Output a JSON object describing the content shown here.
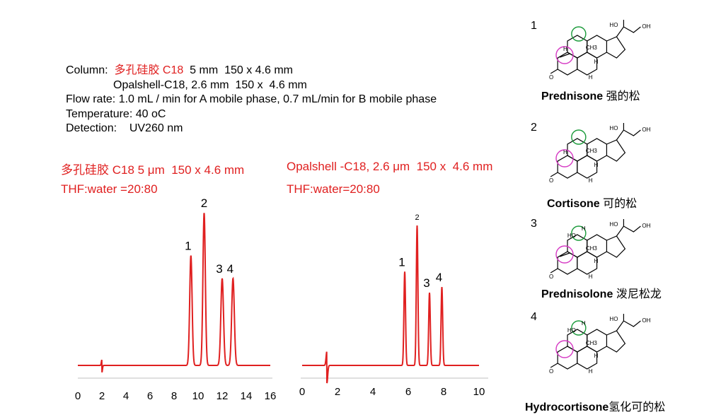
{
  "conditions": {
    "column_label": "Column:",
    "column_1_cn": "多孔硅胶 C18",
    "column_1_rest": "5 mm  150 x 4.6 mm",
    "column_2": "Opalshell-C18, 2.6 mm  150 x  4.6 mm",
    "flow_rate": "Flow rate: 1.0 mL / min for A mobile phase, 0.7 mL/min for B mobile phase",
    "temperature": "Temperature: 40 oC",
    "detection": "Detection:    UV260 nm"
  },
  "colors": {
    "trace": "#e02020",
    "highlight_green": "#1a9a3a",
    "highlight_pink": "#d63bc4"
  },
  "chart_data": [
    {
      "type": "line",
      "title": "多孔硅胶 C18 5 μm  150 x 4.6 mm",
      "subtitle": "THF:water =20:80",
      "xlim": [
        0,
        16
      ],
      "x_ticks": [
        "0",
        "2",
        "4",
        "6",
        "8",
        "10",
        "12",
        "14",
        "16"
      ],
      "y_axis": "not shown",
      "grid": false,
      "peaks": [
        {
          "label": "1",
          "time": 9.4,
          "height": 0.72,
          "width": 0.1
        },
        {
          "label": "2",
          "time": 10.5,
          "height": 1.0,
          "width": 0.1
        },
        {
          "label": "3",
          "time": 12.0,
          "height": 0.57,
          "width": 0.11
        },
        {
          "label": "4",
          "time": 12.9,
          "height": 0.57,
          "width": 0.11
        }
      ],
      "injection_disturbance_time": 2.0
    },
    {
      "type": "line",
      "title": "Opalshell -C18, 2.6 μm  150 x  4.6 mm",
      "subtitle": "THF:water=20:80",
      "xlim": [
        0,
        10
      ],
      "x_ticks": [
        "0",
        "2",
        "4",
        "6",
        "8",
        "10"
      ],
      "y_axis": "not shown",
      "grid": false,
      "peaks": [
        {
          "label": "1",
          "time": 5.8,
          "height": 0.67,
          "width": 0.045
        },
        {
          "label": "2",
          "time": 6.5,
          "height": 1.0,
          "width": 0.045
        },
        {
          "label": "3",
          "time": 7.2,
          "height": 0.52,
          "width": 0.045
        },
        {
          "label": "4",
          "time": 7.9,
          "height": 0.56,
          "width": 0.045
        }
      ],
      "injection_disturbance_time": 1.4
    }
  ],
  "structures": [
    {
      "number": "1",
      "name": "Prednisone",
      "name_cn": "强的松",
      "atom_labels": [
        "O",
        "HO",
        "OH",
        "H",
        "CH3",
        "H",
        "H"
      ],
      "c11": "ketone",
      "ring_a_double_bond": true
    },
    {
      "number": "2",
      "name": "Cortisone",
      "name_cn": "可的松",
      "atom_labels": [
        "O",
        "HO",
        "OH",
        "H",
        "CH3",
        "H",
        "H"
      ],
      "c11": "ketone",
      "ring_a_double_bond": false
    },
    {
      "number": "3",
      "name": "Prednisolone",
      "name_cn": "泼尼松龙",
      "atom_labels": [
        "O",
        "HO",
        "OH",
        "HO",
        "H",
        "CH3",
        "H",
        "H"
      ],
      "c11": "hydroxyl",
      "ring_a_double_bond": true
    },
    {
      "number": "4",
      "name": "Hydrocortisone",
      "name_cn": "氢化可的松",
      "atom_labels": [
        "O",
        "HO",
        "OH",
        "HO",
        "H",
        "CH3",
        "H",
        "H"
      ],
      "c11": "hydroxyl",
      "ring_a_double_bond": false
    }
  ]
}
